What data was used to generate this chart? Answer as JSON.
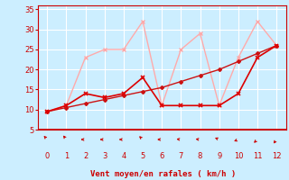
{
  "xlabel": "Vent moyen/en rafales ( km/h )",
  "xlim": [
    -0.5,
    12.5
  ],
  "ylim": [
    5,
    36
  ],
  "xticks": [
    0,
    1,
    2,
    3,
    4,
    5,
    6,
    7,
    8,
    9,
    10,
    11,
    12
  ],
  "yticks": [
    5,
    10,
    15,
    20,
    25,
    30,
    35
  ],
  "bg_color": "#cceeff",
  "grid_color": "#ffffff",
  "mean_x": [
    0,
    1,
    2,
    3,
    4,
    5,
    6,
    7,
    8,
    9,
    10,
    11,
    12
  ],
  "mean_y": [
    9.5,
    11,
    14,
    13,
    14,
    18,
    11,
    11,
    11,
    11,
    14,
    23,
    26
  ],
  "gust_x": [
    0,
    1,
    2,
    3,
    4,
    5,
    6,
    7,
    8,
    9,
    10,
    11,
    12
  ],
  "gust_y": [
    9.5,
    11,
    23,
    25,
    25,
    32,
    11,
    25,
    29,
    11,
    23,
    32,
    26
  ],
  "trend_x": [
    0,
    1,
    2,
    3,
    4,
    5,
    6,
    7,
    8,
    9,
    10,
    11,
    12
  ],
  "trend_y": [
    9.5,
    10.5,
    11.5,
    12.5,
    13.5,
    14.5,
    15.5,
    17,
    18.5,
    20,
    22,
    24,
    26
  ],
  "mean_color": "#dd0000",
  "gust_color": "#ffaaaa",
  "trend_color": "#cc1111",
  "arrow_color": "#cc0000",
  "xlabel_color": "#cc0000",
  "tick_color": "#cc0000",
  "axis_color": "#cc0000",
  "arrow_angles": [
    225,
    220,
    270,
    270,
    270,
    230,
    270,
    265,
    265,
    250,
    290,
    310,
    320
  ]
}
